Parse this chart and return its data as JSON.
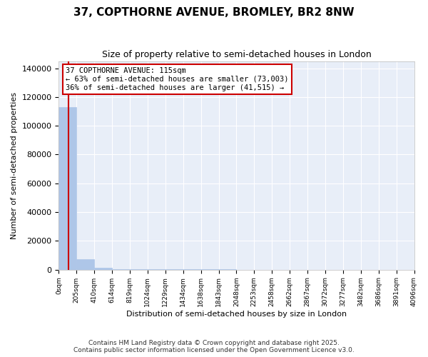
{
  "title": "37, COPTHORNE AVENUE, BROMLEY, BR2 8NW",
  "subtitle": "Size of property relative to semi-detached houses in London",
  "xlabel": "Distribution of semi-detached houses by size in London",
  "ylabel": "Number of semi-detached properties",
  "property_size": 115,
  "property_label": "37 COPTHORNE AVENUE: 115sqm",
  "pct_smaller": 63,
  "pct_larger": 36,
  "n_smaller": 73003,
  "n_larger": 41515,
  "annotation_box_color": "#cc0000",
  "bar_color": "#aec6e8",
  "bar_edge_color": "#aec6e8",
  "vline_color": "#cc0000",
  "bg_color": "#e8eef8",
  "grid_color": "white",
  "bin_edges": [
    0,
    205,
    410,
    614,
    819,
    1024,
    1229,
    1434,
    1638,
    1843,
    2048,
    2253,
    2458,
    2662,
    2867,
    3072,
    3277,
    3482,
    3686,
    3891,
    4096
  ],
  "bin_labels": [
    "0sqm",
    "205sqm",
    "410sqm",
    "614sqm",
    "819sqm",
    "1024sqm",
    "1229sqm",
    "1434sqm",
    "1638sqm",
    "1843sqm",
    "2048sqm",
    "2253sqm",
    "2458sqm",
    "2662sqm",
    "2867sqm",
    "3072sqm",
    "3277sqm",
    "3482sqm",
    "3686sqm",
    "3891sqm",
    "4096sqm"
  ],
  "bar_heights": [
    113000,
    7000,
    1200,
    500,
    250,
    150,
    100,
    80,
    60,
    50,
    40,
    35,
    30,
    25,
    20,
    18,
    15,
    13,
    11,
    10
  ],
  "ylim": [
    0,
    145000
  ],
  "yticks": [
    0,
    20000,
    40000,
    60000,
    80000,
    100000,
    120000,
    140000
  ],
  "footer_line1": "Contains HM Land Registry data © Crown copyright and database right 2025.",
  "footer_line2": "Contains public sector information licensed under the Open Government Licence v3.0."
}
